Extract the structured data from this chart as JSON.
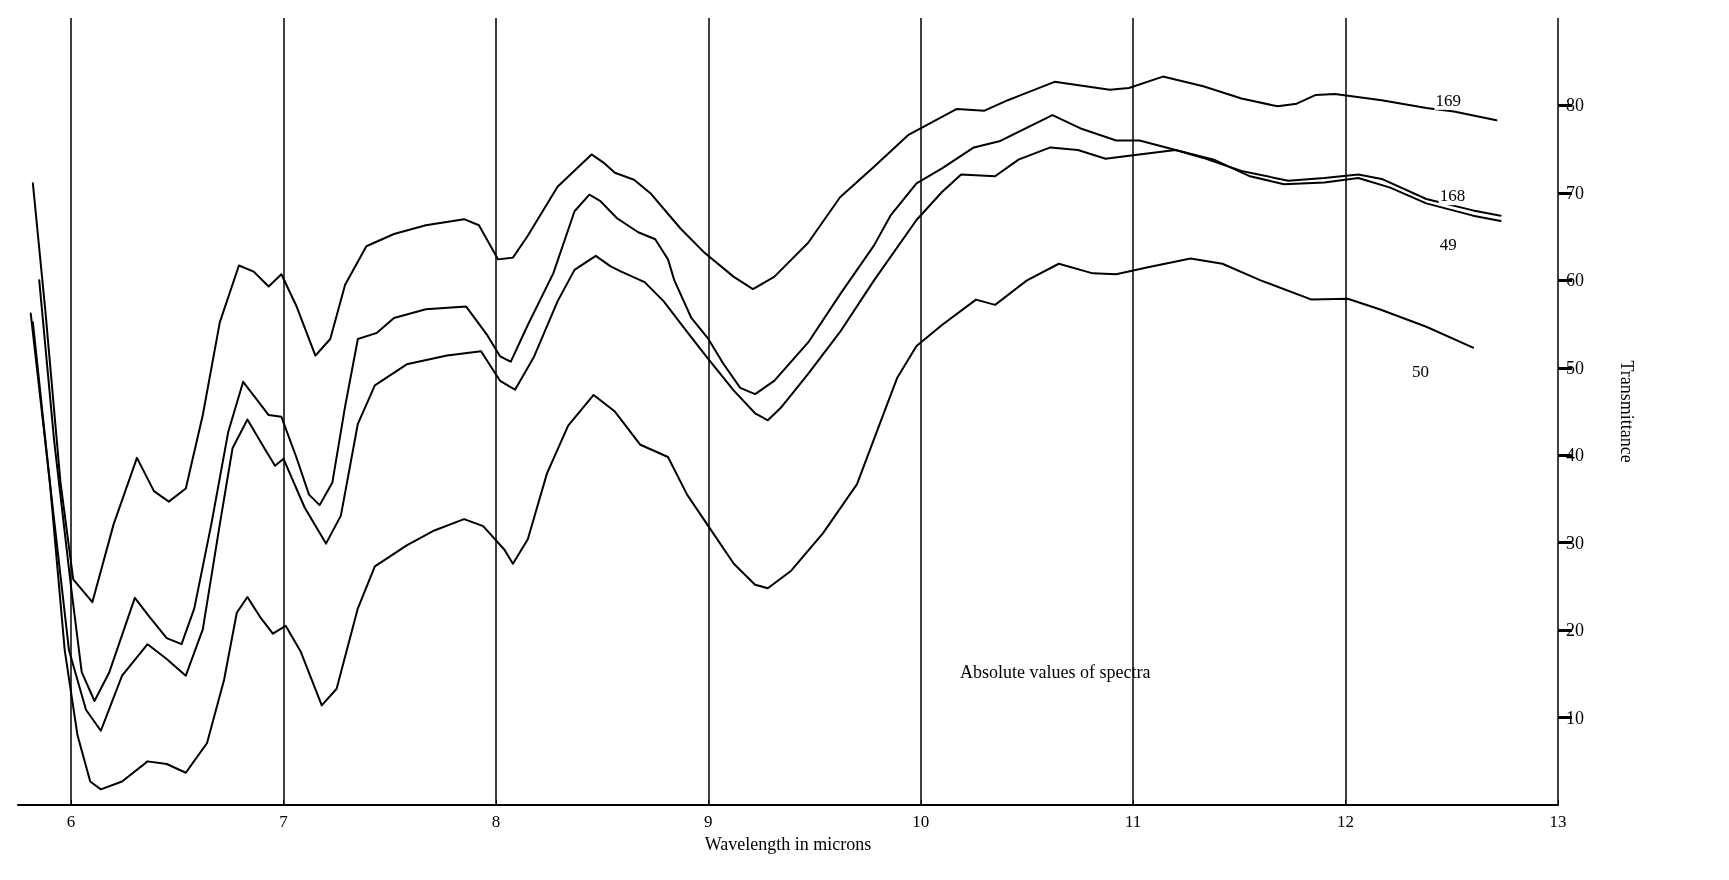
{
  "chart_data": {
    "type": "line",
    "xlabel": "Wavelength in microns",
    "ylabel": "Transmittance",
    "annotations": [
      "Absolute values of spectra"
    ],
    "xlim": [
      5.75,
      13
    ],
    "xticks": [
      6,
      7,
      8,
      9,
      10,
      11,
      12,
      13
    ],
    "ylim": [
      0,
      90
    ],
    "yticks": [
      10,
      20,
      30,
      40,
      50,
      60,
      70,
      80
    ],
    "grid": "x",
    "legend": false,
    "marker": "none",
    "line_style": "solid",
    "series": [
      {
        "name": "169",
        "color": "#000000",
        "x": [
          5.82,
          5.88,
          5.95,
          6.01,
          6.1,
          6.2,
          6.31,
          6.39,
          6.46,
          6.54,
          6.62,
          6.7,
          6.79,
          6.86,
          6.93,
          6.99,
          7.06,
          7.15,
          7.22,
          7.29,
          7.39,
          7.52,
          7.67,
          7.85,
          7.92,
          8.01,
          8.08,
          8.15,
          8.29,
          8.45,
          8.51,
          8.56,
          8.65,
          8.73,
          8.87,
          8.98,
          9.12,
          9.21,
          9.31,
          9.47,
          9.62,
          9.78,
          9.94,
          10.17,
          10.3,
          10.41,
          10.63,
          10.89,
          10.98,
          11.14,
          11.33,
          11.51,
          11.68,
          11.77,
          11.86,
          11.95,
          12.17,
          12.38,
          12.51,
          12.71
        ],
        "values": [
          71.1,
          56.2,
          36.9,
          25.8,
          23.2,
          32.1,
          39.7,
          35.9,
          34.7,
          36.2,
          44.6,
          55.2,
          61.7,
          61.0,
          59.3,
          60.7,
          57.1,
          51.4,
          53.3,
          59.5,
          63.9,
          65.3,
          66.3,
          67.0,
          66.3,
          62.4,
          62.6,
          65.1,
          70.7,
          74.4,
          73.4,
          72.3,
          71.5,
          69.9,
          65.9,
          63.2,
          60.4,
          59.0,
          60.4,
          64.3,
          69.5,
          73.0,
          76.6,
          79.6,
          79.4,
          80.6,
          82.7,
          81.8,
          82.0,
          83.3,
          82.2,
          80.8,
          79.9,
          80.2,
          81.2,
          81.3,
          80.6,
          79.7,
          79.3,
          78.3
        ]
      },
      {
        "name": "168",
        "color": "#000000",
        "x": [
          5.85,
          5.92,
          6.0,
          6.05,
          6.11,
          6.18,
          6.3,
          6.37,
          6.45,
          6.52,
          6.58,
          6.66,
          6.74,
          6.81,
          6.87,
          6.93,
          6.99,
          7.06,
          7.12,
          7.17,
          7.23,
          7.29,
          7.35,
          7.44,
          7.52,
          7.67,
          7.86,
          7.96,
          8.02,
          8.07,
          8.15,
          8.27,
          8.37,
          8.44,
          8.49,
          8.57,
          8.67,
          8.75,
          8.81,
          8.84,
          8.92,
          9.0,
          9.07,
          9.15,
          9.22,
          9.31,
          9.47,
          9.62,
          9.78,
          9.86,
          9.98,
          10.1,
          10.25,
          10.37,
          10.62,
          10.76,
          10.92,
          11.03,
          11.2,
          11.33,
          11.51,
          11.73,
          11.9,
          12.06,
          12.17,
          12.38,
          12.6,
          12.73
        ],
        "values": [
          60.0,
          41.7,
          24.9,
          15.2,
          11.9,
          15.2,
          23.7,
          21.5,
          19.1,
          18.4,
          22.5,
          32.1,
          42.7,
          48.4,
          46.5,
          44.6,
          44.4,
          39.8,
          35.5,
          34.3,
          36.9,
          45.6,
          53.3,
          54.0,
          55.7,
          56.7,
          57.0,
          53.7,
          51.3,
          50.7,
          54.9,
          60.8,
          67.9,
          69.8,
          69.1,
          67.1,
          65.5,
          64.7,
          62.4,
          60.0,
          55.7,
          53.3,
          50.5,
          47.7,
          47.0,
          48.5,
          52.9,
          58.4,
          64.0,
          67.5,
          71.1,
          72.8,
          75.2,
          75.9,
          78.9,
          77.3,
          76.0,
          76.0,
          74.9,
          74.0,
          72.5,
          71.4,
          71.7,
          72.1,
          71.6,
          69.3,
          68.0,
          67.4
        ]
      },
      {
        "name": "49",
        "color": "#000000",
        "x": [
          5.82,
          5.9,
          5.99,
          6.07,
          6.14,
          6.24,
          6.36,
          6.45,
          6.54,
          6.62,
          6.7,
          6.76,
          6.83,
          6.91,
          6.96,
          7.0,
          7.1,
          7.2,
          7.27,
          7.35,
          7.43,
          7.58,
          7.77,
          7.93,
          8.02,
          8.09,
          8.18,
          8.29,
          8.37,
          8.47,
          8.54,
          8.59,
          8.7,
          8.79,
          8.9,
          8.99,
          9.12,
          9.22,
          9.28,
          9.34,
          9.47,
          9.62,
          9.78,
          9.98,
          10.1,
          10.19,
          10.35,
          10.46,
          10.61,
          10.74,
          10.87,
          11.0,
          11.2,
          11.38,
          11.55,
          11.71,
          11.9,
          12.06,
          12.21,
          12.38,
          12.6,
          12.73
        ],
        "values": [
          55.2,
          36.9,
          17.7,
          10.9,
          8.5,
          14.8,
          18.4,
          16.7,
          14.8,
          20.1,
          32.1,
          40.8,
          44.1,
          40.8,
          38.8,
          39.6,
          34.0,
          29.9,
          33.1,
          43.6,
          48.0,
          50.4,
          51.4,
          51.9,
          48.5,
          47.5,
          51.3,
          57.6,
          61.2,
          62.8,
          61.6,
          61.0,
          59.8,
          57.6,
          54.1,
          51.3,
          47.4,
          44.8,
          44.0,
          45.4,
          49.3,
          54.1,
          60.0,
          66.9,
          70.1,
          72.1,
          71.9,
          73.8,
          75.2,
          74.9,
          73.9,
          74.3,
          74.9,
          73.8,
          71.9,
          71.0,
          71.2,
          71.7,
          70.6,
          68.8,
          67.4,
          66.8
        ]
      },
      {
        "name": "50",
        "color": "#000000",
        "x": [
          5.81,
          5.9,
          5.97,
          6.03,
          6.09,
          6.14,
          6.24,
          6.36,
          6.45,
          6.54,
          6.64,
          6.72,
          6.78,
          6.83,
          6.89,
          6.95,
          7.01,
          7.08,
          7.18,
          7.25,
          7.35,
          7.43,
          7.58,
          7.71,
          7.85,
          7.94,
          8.04,
          8.08,
          8.15,
          8.24,
          8.34,
          8.46,
          8.56,
          8.68,
          8.81,
          8.9,
          9.0,
          9.12,
          9.22,
          9.28,
          9.39,
          9.54,
          9.7,
          9.81,
          9.89,
          9.98,
          10.1,
          10.26,
          10.35,
          10.5,
          10.65,
          10.81,
          10.92,
          11.07,
          11.27,
          11.42,
          11.6,
          11.84,
          12.01,
          12.16,
          12.38,
          12.6
        ],
        "values": [
          56.2,
          36.9,
          17.7,
          8.0,
          2.7,
          1.8,
          2.7,
          5.0,
          4.7,
          3.7,
          7.1,
          14.3,
          22.0,
          23.8,
          21.5,
          19.6,
          20.5,
          17.6,
          11.4,
          13.3,
          22.5,
          27.3,
          29.7,
          31.4,
          32.7,
          31.9,
          29.2,
          27.6,
          30.4,
          37.9,
          43.4,
          46.9,
          45.0,
          41.2,
          39.8,
          35.5,
          31.9,
          27.6,
          25.2,
          24.8,
          26.8,
          31.1,
          36.7,
          43.8,
          48.9,
          52.5,
          54.9,
          57.8,
          57.2,
          60.0,
          61.9,
          60.8,
          60.7,
          61.5,
          62.5,
          61.9,
          60.0,
          57.8,
          57.9,
          56.7,
          54.7,
          52.3
        ]
      }
    ]
  }
}
